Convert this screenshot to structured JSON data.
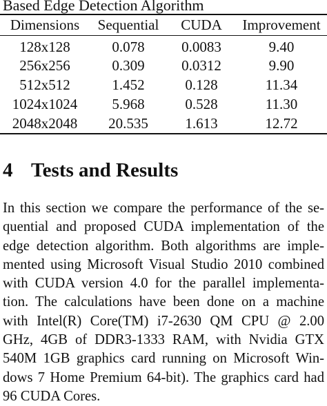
{
  "table": {
    "caption": "Based Edge Detection Algorithm",
    "headers": [
      "Dimensions",
      "Sequential",
      "CUDA",
      "Improvement"
    ],
    "rows": [
      [
        "128x128",
        "0.078",
        "0.0083",
        "9.40"
      ],
      [
        "256x256",
        "0.309",
        "0.0312",
        "9.90"
      ],
      [
        "512x512",
        "1.452",
        "0.128",
        "11.34"
      ],
      [
        "1024x1024",
        "5.968",
        "0.528",
        "11.30"
      ],
      [
        "2048x2048",
        "20.535",
        "1.613",
        "12.72"
      ]
    ]
  },
  "section": {
    "number": "4",
    "title": "Tests and Results",
    "lines": [
      "In this section we compare the performance of the se-",
      "quential and proposed CUDA implementation of the",
      "edge detection algorithm. Both algorithms are imple-",
      "mented using Microsoft Visual Studio 2010 combined",
      "with CUDA version 4.0 for the parallel implementa-",
      "tion. The calculations have been done on a machine",
      "with Intel(R) Core(TM) i7-2630 QM CPU @ 2.00",
      "GHz, 4GB of DDR3-1333 RAM, with Nvidia GTX",
      "540M 1GB graphics card running on Microsoft Win-",
      "dows 7 Home Premium 64-bit). The graphics card had",
      "96 CUDA Cores."
    ]
  }
}
